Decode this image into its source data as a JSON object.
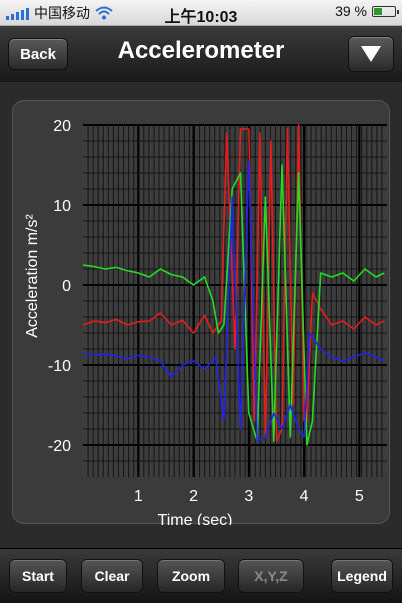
{
  "status_bar": {
    "carrier": "中国移动",
    "time": "上午10:03",
    "battery": "39 %",
    "battery_level": 0.39,
    "signal_icon": "signal-bars-icon",
    "wifi_icon": "wifi-icon",
    "battery_icon": "battery-icon"
  },
  "nav": {
    "back_label": "Back",
    "title": "Accelerometer",
    "menu_icon": "triangle-down-icon"
  },
  "toolbar": {
    "start_label": "Start",
    "clear_label": "Clear",
    "zoom_label": "Zoom",
    "xyz_label": "X,Y,Z",
    "legend_label": "Legend"
  },
  "chart_data": {
    "type": "line",
    "xlabel": "Time (sec)",
    "ylabel": "Acceleration m/s²",
    "xlim": [
      0,
      5.5
    ],
    "ylim": [
      -24,
      20
    ],
    "xticks": [
      1,
      2,
      3,
      4,
      5
    ],
    "yticks": [
      20,
      10,
      0,
      -10,
      -20
    ],
    "grid": true,
    "colors": {
      "x": "#e81c1c",
      "y": "#22dd22",
      "z": "#2222ee"
    },
    "series": [
      {
        "color": "#e81c1c",
        "x": [
          0.0,
          0.2,
          0.4,
          0.6,
          0.8,
          1.0,
          1.2,
          1.4,
          1.6,
          1.8,
          2.0,
          2.2,
          2.35,
          2.5,
          2.6,
          2.75,
          2.85,
          3.0,
          3.1,
          3.2,
          3.3,
          3.4,
          3.5,
          3.6,
          3.7,
          3.8,
          3.9,
          4.0,
          4.05,
          4.15,
          4.3,
          4.5,
          4.7,
          4.9,
          5.1,
          5.3,
          5.45
        ],
        "y": [
          -5,
          -4.5,
          -4.7,
          -4.3,
          -5,
          -4.6,
          -4.5,
          -3.5,
          -5,
          -4.4,
          -6,
          -3.8,
          -6,
          -4.5,
          19,
          -8,
          19.5,
          19.5,
          -17,
          19,
          -19,
          18,
          -19.5,
          -18,
          19.5,
          -15,
          20,
          -17,
          -17,
          -1,
          -3,
          -5,
          -4.5,
          -5.5,
          -4,
          -5,
          -4.5
        ]
      },
      {
        "color": "#22dd22",
        "x": [
          0.0,
          0.2,
          0.4,
          0.6,
          0.8,
          1.0,
          1.2,
          1.4,
          1.6,
          1.8,
          2.0,
          2.2,
          2.35,
          2.45,
          2.55,
          2.7,
          2.85,
          3.0,
          3.15,
          3.3,
          3.45,
          3.6,
          3.75,
          3.9,
          4.05,
          4.15,
          4.3,
          4.5,
          4.7,
          4.9,
          5.1,
          5.3,
          5.45
        ],
        "y": [
          2.5,
          2.3,
          2.0,
          2.2,
          1.8,
          1.5,
          1.0,
          2.0,
          1.3,
          1.0,
          0,
          1.0,
          -2,
          -6,
          -5,
          12,
          14,
          -16,
          -19.5,
          11,
          -19.5,
          15,
          -19,
          14,
          -20,
          -17,
          1.5,
          1.0,
          1.5,
          0.5,
          2.0,
          1.0,
          1.5
        ]
      },
      {
        "color": "#2222ee",
        "x": [
          0.0,
          0.2,
          0.4,
          0.6,
          0.8,
          1.0,
          1.2,
          1.4,
          1.6,
          1.8,
          2.0,
          2.2,
          2.4,
          2.55,
          2.7,
          2.85,
          3.0,
          3.15,
          3.3,
          3.45,
          3.6,
          3.75,
          3.9,
          4.0,
          4.1,
          4.3,
          4.5,
          4.7,
          4.9,
          5.1,
          5.3,
          5.45
        ],
        "y": [
          -8.5,
          -8.8,
          -8.6,
          -8.9,
          -9.2,
          -8.8,
          -9.0,
          -9.5,
          -11.5,
          -10,
          -9.5,
          -10.5,
          -9,
          -17,
          11,
          -18,
          15.5,
          -19.5,
          -19,
          -16,
          -18,
          -15,
          -18,
          -19,
          -6,
          -8,
          -9,
          -9.5,
          -9,
          -8.5,
          -9,
          -9.5
        ]
      }
    ]
  }
}
